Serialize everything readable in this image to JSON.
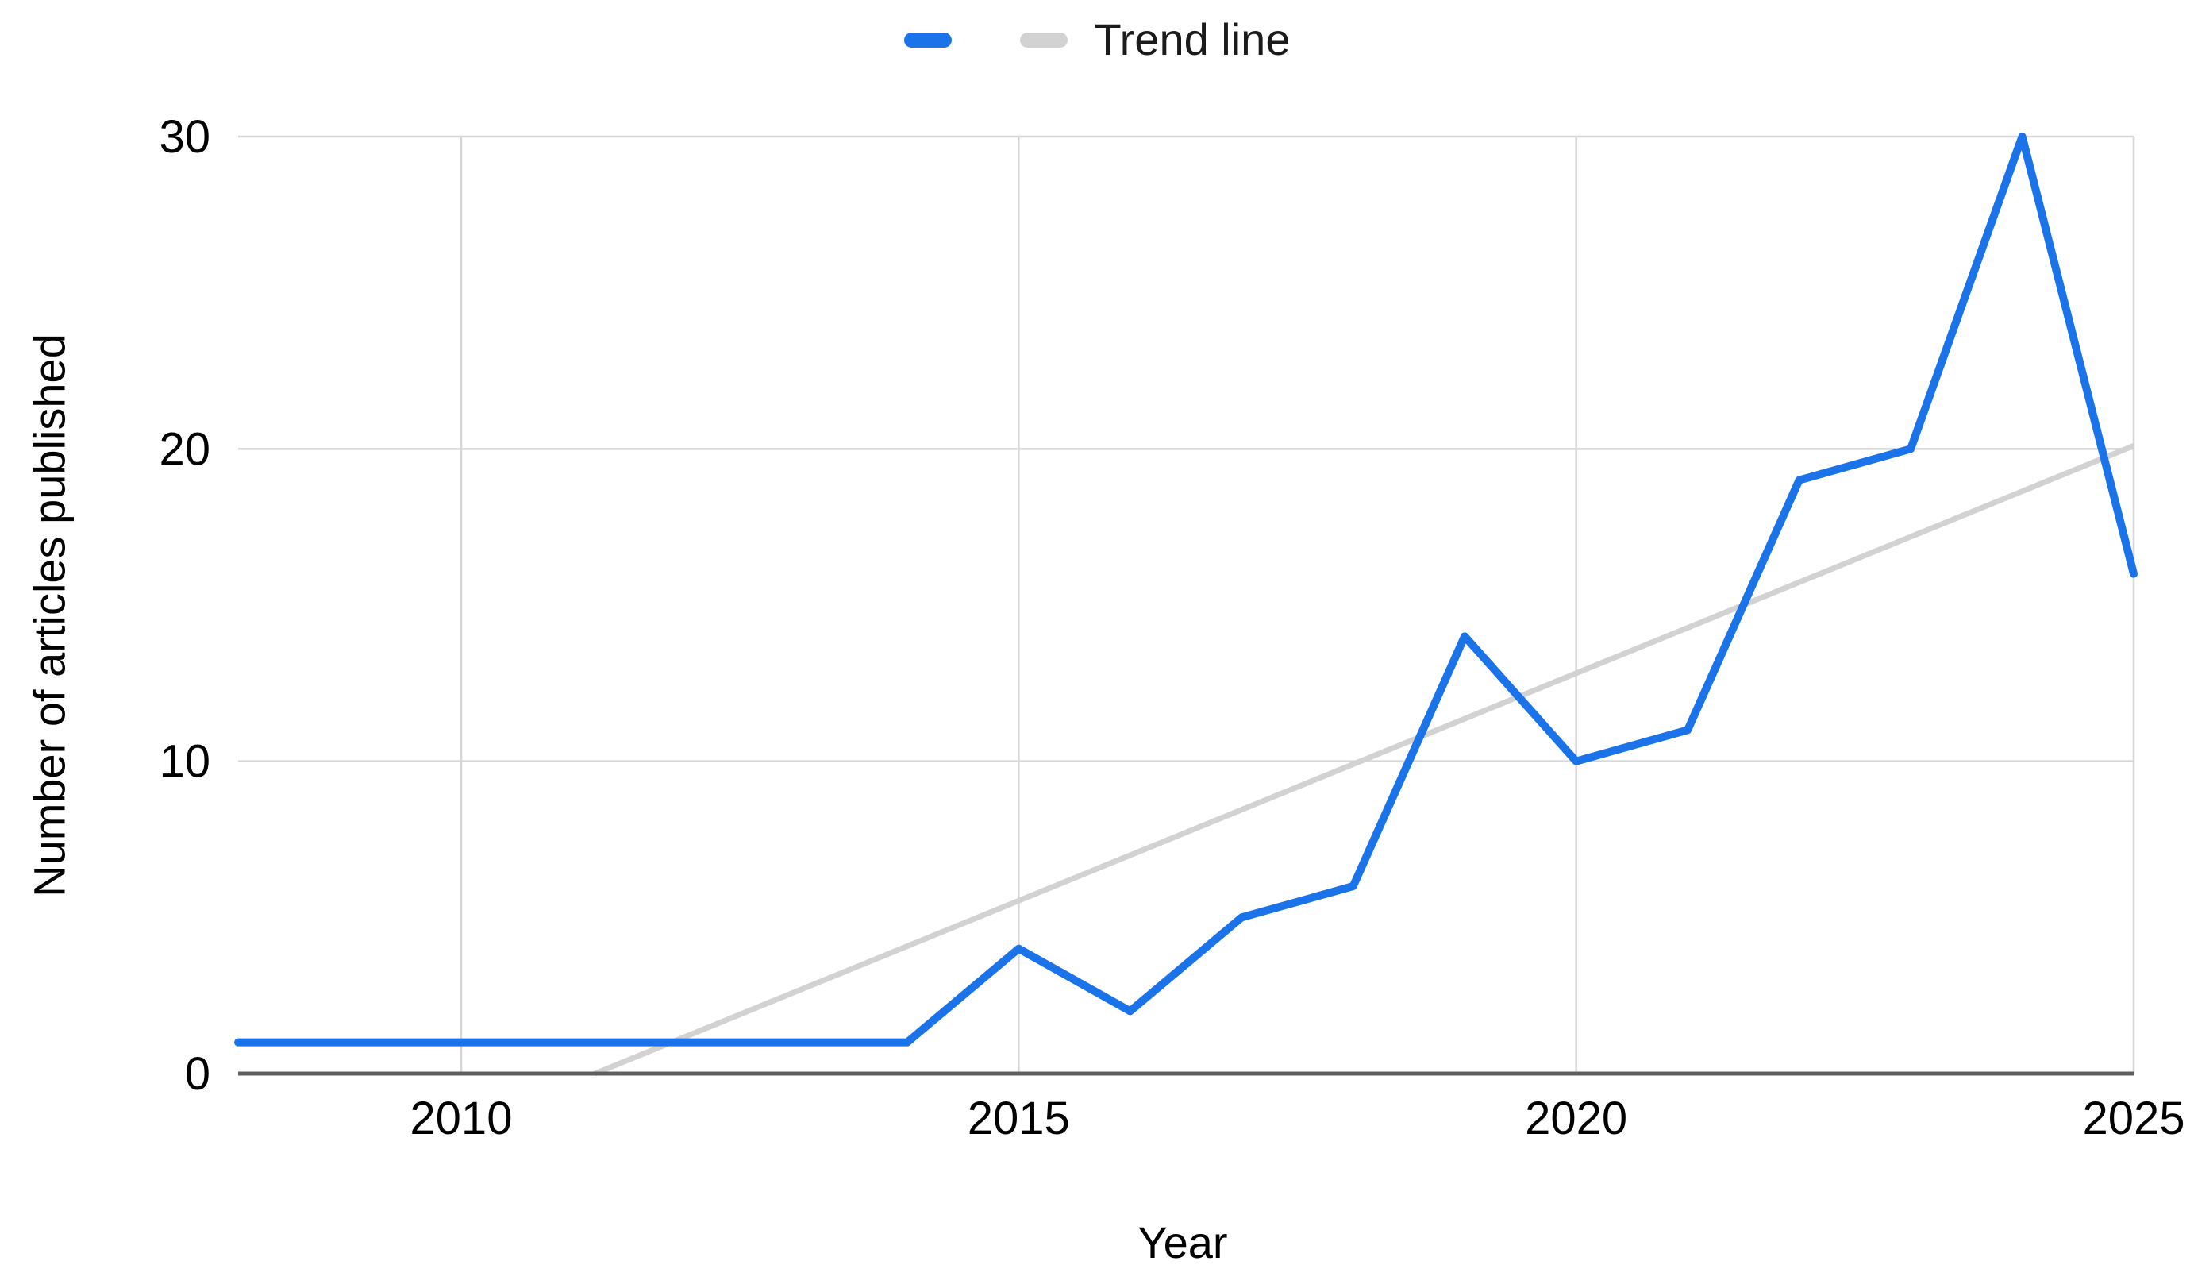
{
  "legend": {
    "items": [
      {
        "label": "",
        "color": "#1a73e8",
        "kind": "series"
      },
      {
        "label": "Trend line",
        "color": "#d2d2d2",
        "kind": "trend"
      }
    ]
  },
  "chart_data": {
    "type": "line",
    "title": "",
    "xlabel": "Year",
    "ylabel": "Number of articles published",
    "x": [
      2008,
      2009,
      2010,
      2011,
      2012,
      2013,
      2014,
      2015,
      2016,
      2017,
      2018,
      2019,
      2020,
      2021,
      2022,
      2023,
      2024,
      2025
    ],
    "series": [
      {
        "name": "",
        "color": "#1a73e8",
        "values": [
          1,
          1,
          1,
          1,
          1,
          1,
          1,
          4,
          2,
          5,
          6,
          14,
          10,
          11,
          19,
          20,
          30,
          16
        ]
      }
    ],
    "trend_line": {
      "name": "Trend line",
      "color": "#d2d2d2",
      "x": [
        2011.2,
        2025
      ],
      "values": [
        0,
        20.1
      ]
    },
    "x_ticks": [
      2010,
      2015,
      2020,
      2025
    ],
    "y_ticks": [
      0,
      10,
      20,
      30
    ],
    "xlim": [
      2008,
      2025
    ],
    "ylim": [
      0,
      30
    ],
    "grid": true,
    "legend_position": "top",
    "colors": {
      "gridline": "#d6d6d6",
      "axis_line": "#5f5f5f",
      "tick_text": "#000000",
      "title_text": "#000000"
    }
  }
}
